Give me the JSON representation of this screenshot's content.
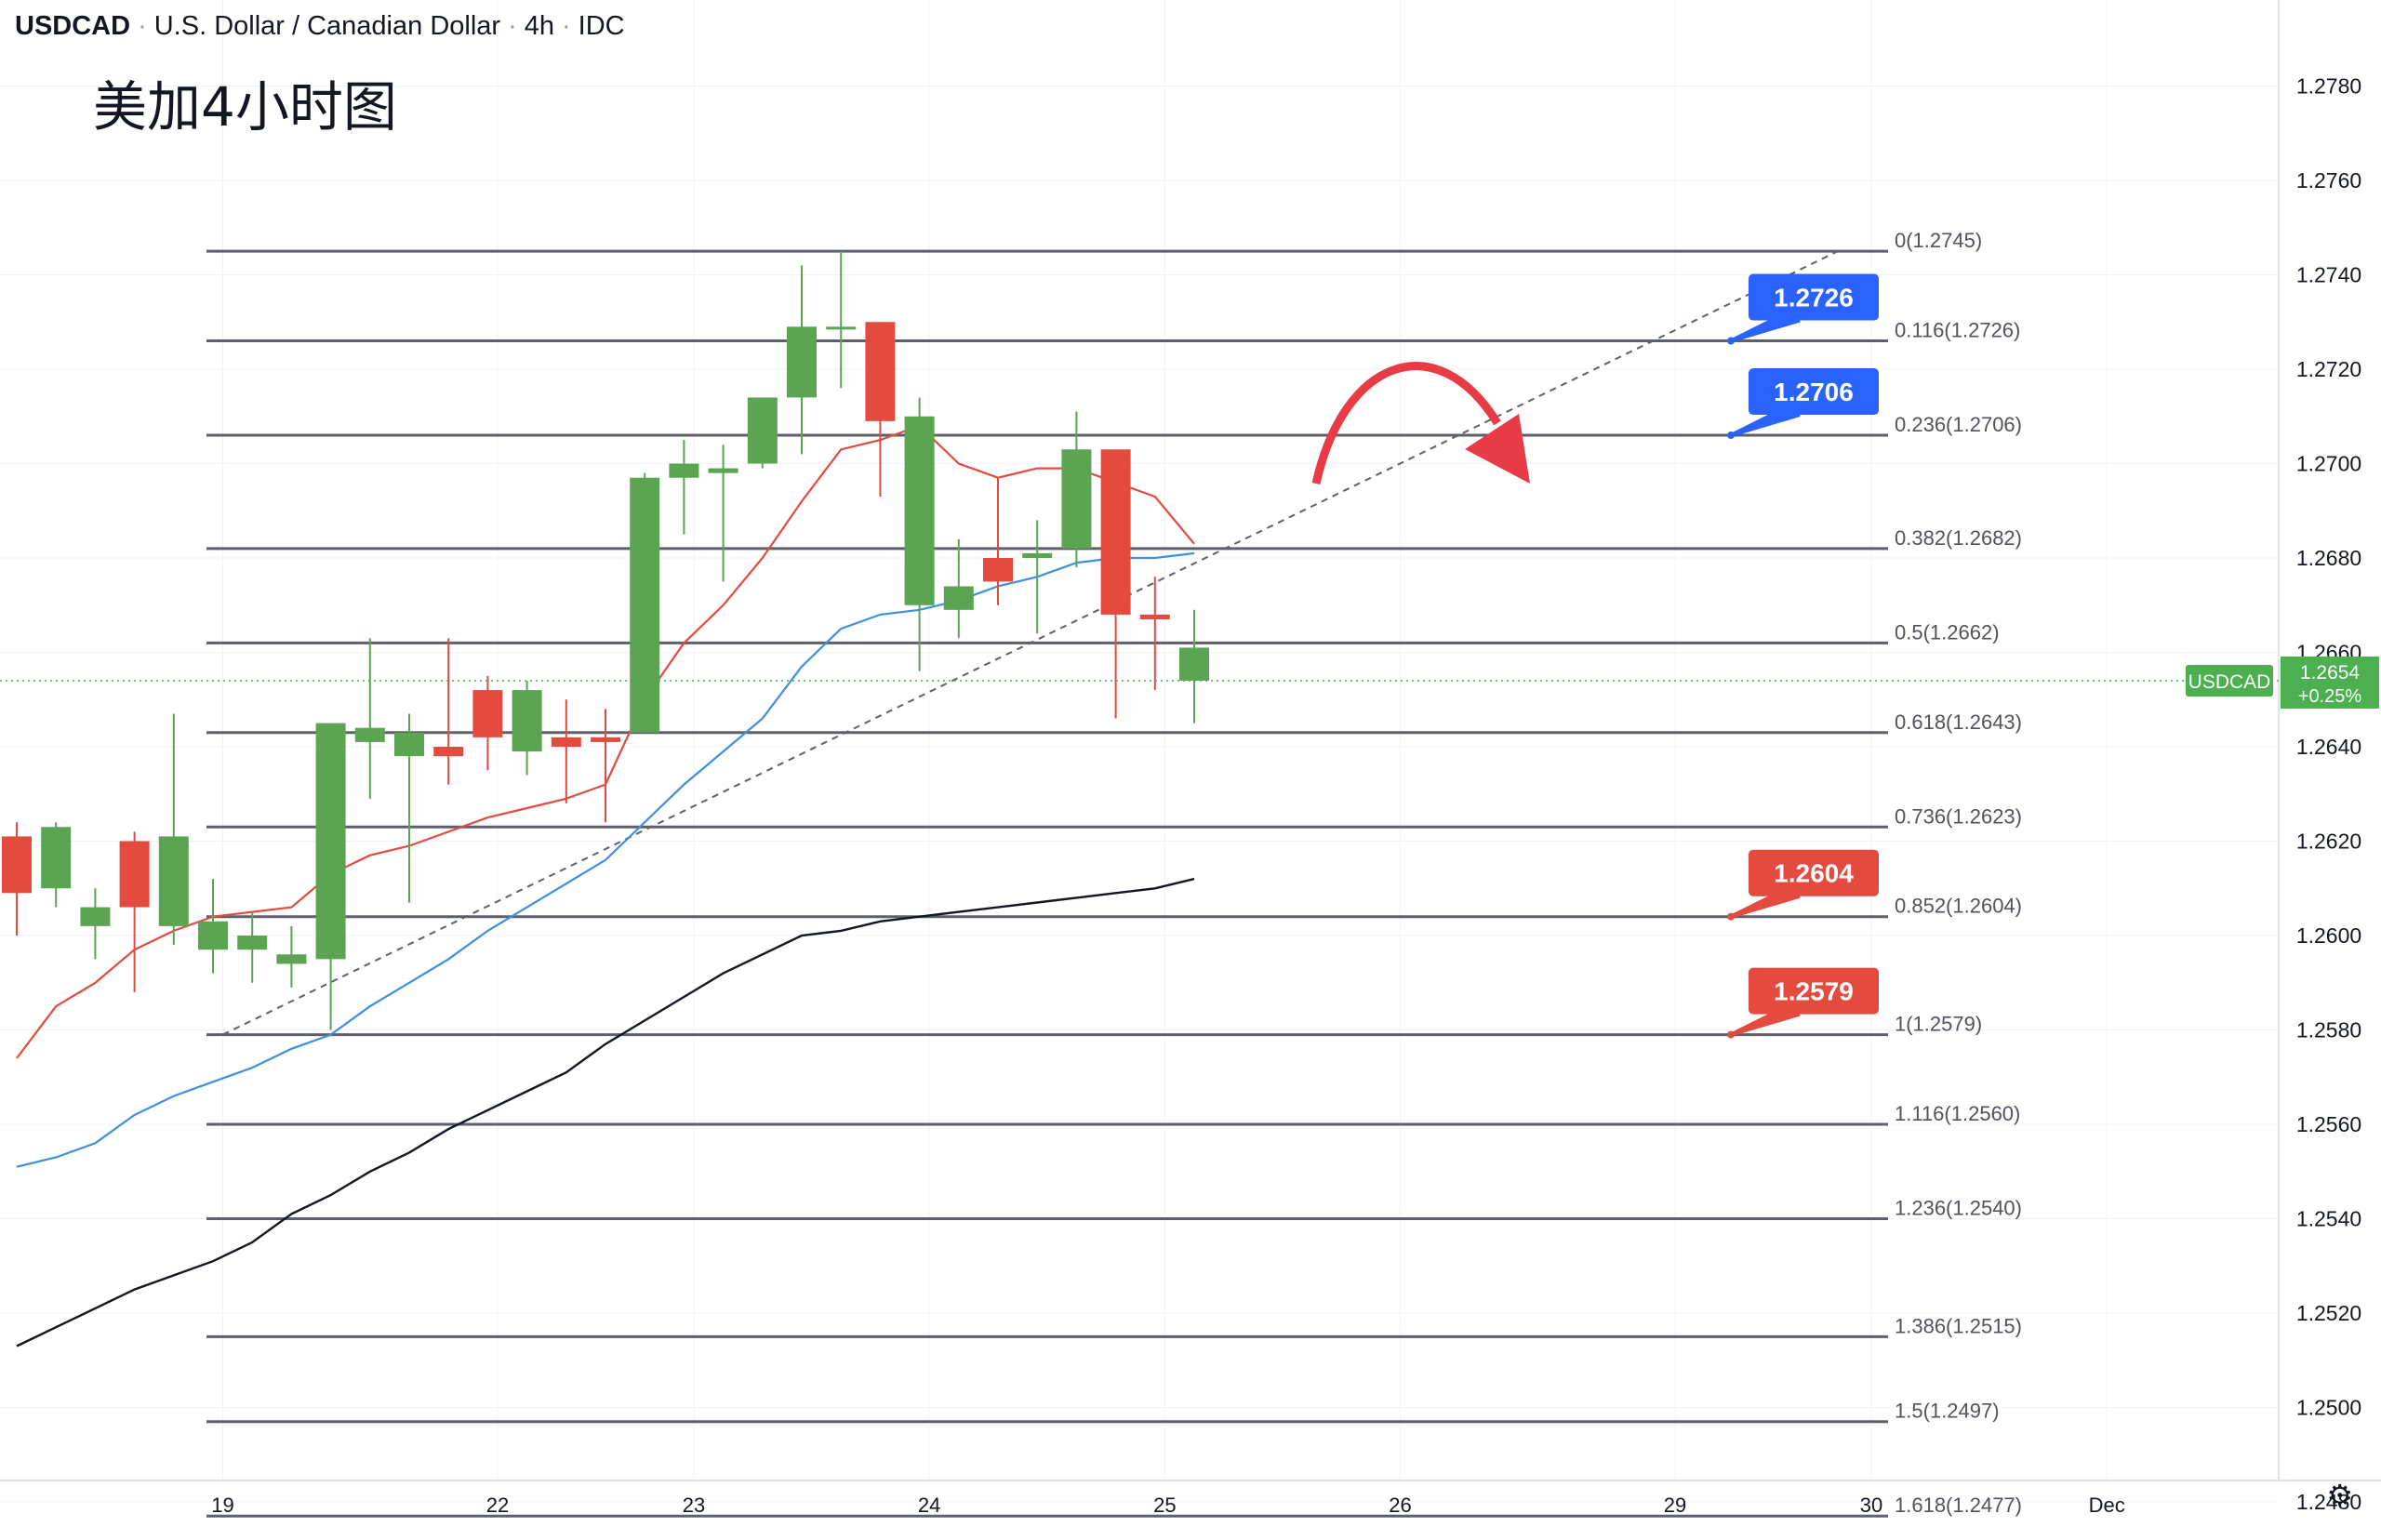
{
  "header": {
    "symbol": "USDCAD",
    "name": "U.S. Dollar / Canadian Dollar",
    "interval": "4h",
    "exchange": "IDC"
  },
  "annotation_text": "美加4小时图",
  "current_price": {
    "symbol": "USDCAD",
    "price": "1.2654",
    "change": "+0.25%"
  },
  "colors": {
    "up": "#5aa452",
    "down": "#e54a3e",
    "ema_fast": "#e54a3e",
    "ema_mid": "#3d8fe0",
    "ema_slow": "#131722",
    "fib_line": "#5d606b",
    "label_blue": "#2962ff",
    "label_red": "#e54a3e",
    "current_price_green": "#4caf50",
    "arrow": "#e83b45"
  },
  "settings_icon": "gear-icon",
  "chart_data": {
    "type": "candlestick",
    "title": "USDCAD · U.S. Dollar / Canadian Dollar · 4h · IDC",
    "ylim": [
      1.2462,
      1.2782
    ],
    "y_ticks": [
      "1.2780",
      "1.2760",
      "1.2740",
      "1.2720",
      "1.2700",
      "1.2680",
      "1.2660",
      "1.2640",
      "1.2620",
      "1.2600",
      "1.2580",
      "1.2560",
      "1.2540",
      "1.2520",
      "1.2500",
      "1.2480"
    ],
    "x_ticks": [
      {
        "label": "19",
        "index": 5.25
      },
      {
        "label": "22",
        "index": 12.25
      },
      {
        "label": "23",
        "index": 17.25
      },
      {
        "label": "24",
        "index": 23.25
      },
      {
        "label": "25",
        "index": 29.25
      },
      {
        "label": "26",
        "index": 35.25
      },
      {
        "label": "29",
        "index": 42.25
      },
      {
        "label": "30",
        "index": 47.25
      },
      {
        "label": "Dec",
        "index": 53.25
      }
    ],
    "candles": [
      {
        "o": 1.2621,
        "h": 1.2624,
        "l": 1.26,
        "c": 1.2609
      },
      {
        "o": 1.261,
        "h": 1.2624,
        "l": 1.2606,
        "c": 1.2623
      },
      {
        "o": 1.2602,
        "h": 1.261,
        "l": 1.2595,
        "c": 1.2606
      },
      {
        "o": 1.262,
        "h": 1.2622,
        "l": 1.2588,
        "c": 1.2606
      },
      {
        "o": 1.2602,
        "h": 1.2647,
        "l": 1.2598,
        "c": 1.2621
      },
      {
        "o": 1.2597,
        "h": 1.2612,
        "l": 1.2592,
        "c": 1.2603
      },
      {
        "o": 1.2597,
        "h": 1.2605,
        "l": 1.259,
        "c": 1.26
      },
      {
        "o": 1.2594,
        "h": 1.2602,
        "l": 1.2589,
        "c": 1.2596
      },
      {
        "o": 1.2595,
        "h": 1.2645,
        "l": 1.258,
        "c": 1.2645
      },
      {
        "o": 1.2641,
        "h": 1.2663,
        "l": 1.2629,
        "c": 1.2644
      },
      {
        "o": 1.2638,
        "h": 1.2647,
        "l": 1.2607,
        "c": 1.2643
      },
      {
        "o": 1.264,
        "h": 1.2663,
        "l": 1.2632,
        "c": 1.2638
      },
      {
        "o": 1.2652,
        "h": 1.2655,
        "l": 1.2635,
        "c": 1.2642
      },
      {
        "o": 1.2639,
        "h": 1.2654,
        "l": 1.2634,
        "c": 1.2652
      },
      {
        "o": 1.2642,
        "h": 1.265,
        "l": 1.2628,
        "c": 1.264
      },
      {
        "o": 1.2642,
        "h": 1.2648,
        "l": 1.2624,
        "c": 1.2641
      },
      {
        "o": 1.2643,
        "h": 1.2698,
        "l": 1.2643,
        "c": 1.2697
      },
      {
        "o": 1.2697,
        "h": 1.2705,
        "l": 1.2685,
        "c": 1.27
      },
      {
        "o": 1.2698,
        "h": 1.2704,
        "l": 1.2675,
        "c": 1.2699
      },
      {
        "o": 1.27,
        "h": 1.2714,
        "l": 1.2699,
        "c": 1.2714
      },
      {
        "o": 1.2714,
        "h": 1.2742,
        "l": 1.2702,
        "c": 1.2729
      },
      {
        "o": 1.2729,
        "h": 1.2745,
        "l": 1.2716,
        "c": 1.2729
      },
      {
        "o": 1.273,
        "h": 1.273,
        "l": 1.2693,
        "c": 1.2709
      },
      {
        "o": 1.267,
        "h": 1.2714,
        "l": 1.2656,
        "c": 1.271
      },
      {
        "o": 1.2669,
        "h": 1.2684,
        "l": 1.2663,
        "c": 1.2674
      },
      {
        "o": 1.268,
        "h": 1.2697,
        "l": 1.267,
        "c": 1.2675
      },
      {
        "o": 1.268,
        "h": 1.2688,
        "l": 1.2664,
        "c": 1.2681
      },
      {
        "o": 1.2682,
        "h": 1.2711,
        "l": 1.2678,
        "c": 1.2703
      },
      {
        "o": 1.2703,
        "h": 1.2702,
        "l": 1.2646,
        "c": 1.2668
      },
      {
        "o": 1.2668,
        "h": 1.2676,
        "l": 1.2652,
        "c": 1.2667
      },
      {
        "o": 1.2654,
        "h": 1.2669,
        "l": 1.2645,
        "c": 1.2661
      }
    ],
    "ema_fast": [
      1.2574,
      1.2585,
      1.259,
      1.2597,
      1.2601,
      1.2604,
      1.2605,
      1.2606,
      1.2613,
      1.2617,
      1.2619,
      1.2622,
      1.2625,
      1.2627,
      1.2629,
      1.2632,
      1.265,
      1.2662,
      1.267,
      1.268,
      1.2692,
      1.2703,
      1.2705,
      1.2708,
      1.27,
      1.2697,
      1.2699,
      1.2699,
      1.2696,
      1.2693,
      1.2683
    ],
    "ema_mid": [
      1.2551,
      1.2553,
      1.2556,
      1.2562,
      1.2566,
      1.2569,
      1.2572,
      1.2576,
      1.2579,
      1.2585,
      1.259,
      1.2595,
      1.2601,
      1.2606,
      1.2611,
      1.2616,
      1.2624,
      1.2632,
      1.2639,
      1.2646,
      1.2657,
      1.2665,
      1.2668,
      1.2669,
      1.2671,
      1.2674,
      1.2676,
      1.2679,
      1.268,
      1.268,
      1.2681
    ],
    "ema_slow": [
      1.2513,
      1.2517,
      1.2521,
      1.2525,
      1.2528,
      1.2531,
      1.2535,
      1.2541,
      1.2545,
      1.255,
      1.2554,
      1.2559,
      1.2563,
      1.2567,
      1.2571,
      1.2577,
      1.2582,
      1.2587,
      1.2592,
      1.2596,
      1.26,
      1.2601,
      1.2603,
      1.2604,
      1.2605,
      1.2606,
      1.2607,
      1.2608,
      1.2609,
      1.261,
      1.2612
    ],
    "fib_levels": [
      {
        "ratio": "0",
        "price": 1.2745,
        "label": "0(1.2745)"
      },
      {
        "ratio": "0.116",
        "price": 1.2726,
        "label": "0.116(1.2726)"
      },
      {
        "ratio": "0.236",
        "price": 1.2706,
        "label": "0.236(1.2706)"
      },
      {
        "ratio": "0.382",
        "price": 1.2682,
        "label": "0.382(1.2682)"
      },
      {
        "ratio": "0.5",
        "price": 1.2662,
        "label": "0.5(1.2662)"
      },
      {
        "ratio": "0.618",
        "price": 1.2643,
        "label": "0.618(1.2643)"
      },
      {
        "ratio": "0.736",
        "price": 1.2623,
        "label": "0.736(1.2623)"
      },
      {
        "ratio": "0.852",
        "price": 1.2604,
        "label": "0.852(1.2604)"
      },
      {
        "ratio": "1",
        "price": 1.2579,
        "label": "1(1.2579)"
      },
      {
        "ratio": "1.116",
        "price": 1.256,
        "label": "1.116(1.2560)"
      },
      {
        "ratio": "1.236",
        "price": 1.254,
        "label": "1.236(1.2540)"
      },
      {
        "ratio": "1.386",
        "price": 1.2515,
        "label": "1.386(1.2515)"
      },
      {
        "ratio": "1.5",
        "price": 1.2497,
        "label": "1.5(1.2497)"
      },
      {
        "ratio": "1.618",
        "price": 1.2477,
        "label": "1.618(1.2477)"
      }
    ],
    "price_callouts": [
      {
        "text": "1.2726",
        "price": 1.2726,
        "color": "blue"
      },
      {
        "text": "1.2706",
        "price": 1.2706,
        "color": "blue"
      },
      {
        "text": "1.2604",
        "price": 1.2604,
        "color": "red"
      },
      {
        "text": "1.2579",
        "price": 1.2579,
        "color": "red"
      }
    ],
    "trendline": {
      "from": {
        "index": 5.25,
        "price": 1.2579
      },
      "to": {
        "index": 46.4,
        "price": 1.2745
      },
      "style": "dashed"
    },
    "current_price_line": 1.2654,
    "forecast_arrow": "curved arrow up then down"
  }
}
